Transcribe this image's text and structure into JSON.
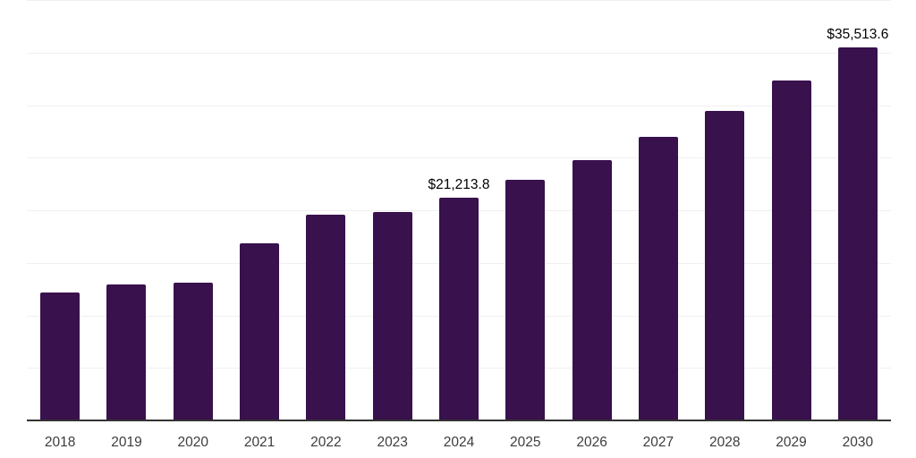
{
  "chart_data": {
    "type": "bar",
    "categories": [
      "2018",
      "2019",
      "2020",
      "2021",
      "2022",
      "2023",
      "2024",
      "2025",
      "2026",
      "2027",
      "2028",
      "2029",
      "2030"
    ],
    "values": [
      12170,
      12900,
      13100,
      16850,
      19540,
      19820,
      21213.8,
      22890,
      24730,
      26940,
      29470,
      32300,
      35513.6
    ],
    "annotations": [
      {
        "category": "2024",
        "text": "$21,213.8"
      },
      {
        "category": "2030",
        "text": "$35,513.6"
      }
    ],
    "title": "",
    "xlabel": "",
    "ylabel": "",
    "ylim": [
      0,
      40000
    ],
    "grid_step": 5000,
    "grid": true,
    "legend_position": "none",
    "bar_color": "#38114d",
    "gridline_color": "#f0f0f0",
    "axis_line_color": "#333333",
    "tick_label_color": "#3d3d3d",
    "data_label_color": "#000000"
  }
}
